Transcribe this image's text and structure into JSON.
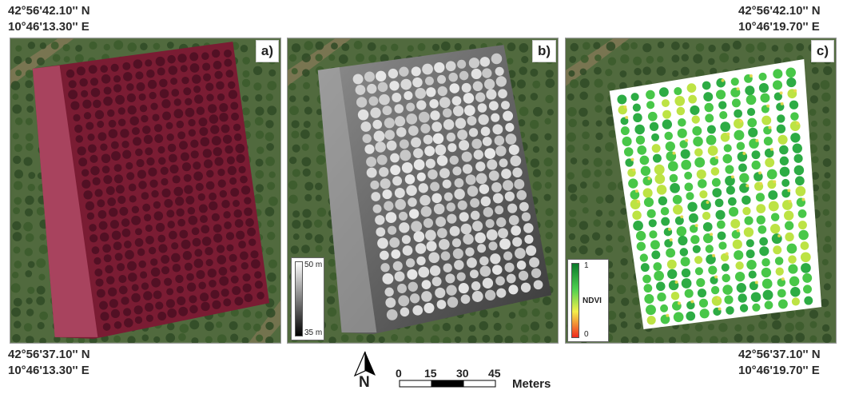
{
  "coordinates": {
    "top_left": {
      "lat": "42°56'42.10'' N",
      "lon": "10°46'13.30'' E"
    },
    "top_right": {
      "lat": "42°56'42.10'' N",
      "lon": "10°46'19.70'' E"
    },
    "bottom_left": {
      "lat": "42°56'37.10'' N",
      "lon": "10°46'13.30'' E"
    },
    "bottom_right": {
      "lat": "42°56'37.10'' N",
      "lon": "10°46'19.70'' E"
    }
  },
  "panels": [
    {
      "label": "a)"
    },
    {
      "label": "b)"
    },
    {
      "label": "c)"
    }
  ],
  "dsm_legend": {
    "max": "50 m",
    "min": "35 m"
  },
  "ndvi_legend": {
    "title": "NDVI",
    "max": "1",
    "min": "0",
    "colors": [
      "#0a7a2a",
      "#4fd14f",
      "#f3ef4a",
      "#f02a1e"
    ]
  },
  "north_arrow": {
    "letter": "N"
  },
  "scale_bar": {
    "ticks": [
      "0",
      "15",
      "30",
      "45"
    ],
    "unit": "Meters"
  },
  "colors": {
    "imagery_green": "#4f6b3c",
    "false_color": "#7d1f35",
    "canopy_ndvi": "#3ec43e"
  }
}
